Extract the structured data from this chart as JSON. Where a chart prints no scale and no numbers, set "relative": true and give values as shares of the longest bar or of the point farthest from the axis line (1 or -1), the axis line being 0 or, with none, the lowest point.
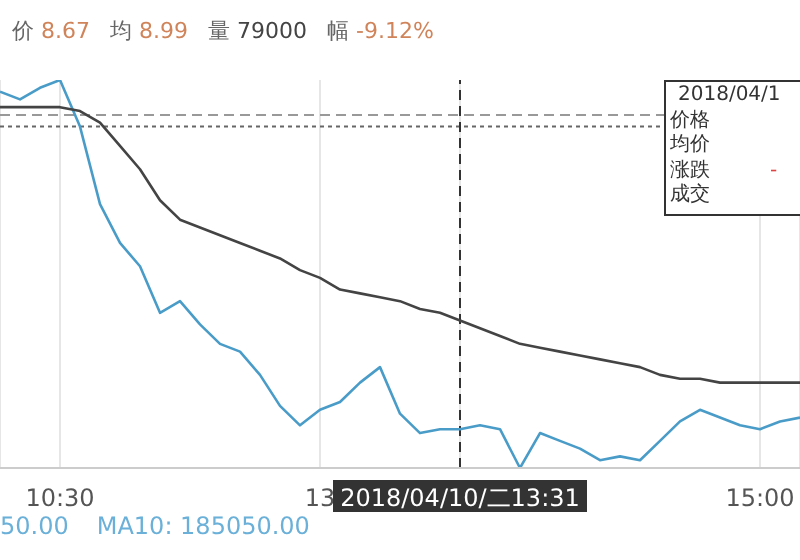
{
  "chart_data": {
    "type": "line",
    "relative": true,
    "grid": "x",
    "legend": false,
    "marker": "none",
    "line_style": "solid",
    "categories": [
      null,
      null,
      null,
      "10:30",
      null,
      null,
      null,
      null,
      null,
      null,
      null,
      null,
      null,
      null,
      null,
      null,
      "13",
      null,
      null,
      null,
      null,
      null,
      null,
      "2018/04/10/二13:31",
      null,
      null,
      null,
      null,
      null,
      null,
      null,
      null,
      null,
      null,
      null,
      null,
      null,
      null,
      "15:00",
      null,
      null
    ],
    "series": [
      {
        "color": "#4a9cc8",
        "values": [
          0.97,
          0.95,
          0.98,
          1,
          0.88,
          0.68,
          0.58,
          0.52,
          0.4,
          0.43,
          0.37,
          0.32,
          0.3,
          0.24,
          0.16,
          0.11,
          0.15,
          0.17,
          0.22,
          0.26,
          0.14,
          0.09,
          0.1,
          0.1,
          0.11,
          0.1,
          0,
          0.09,
          0.07,
          0.05,
          0.02,
          0.03,
          0.02,
          0.07,
          0.12,
          0.15,
          0.13,
          0.11,
          0.1,
          0.12,
          0.13
        ]
      },
      {
        "color": "#444444",
        "values": [
          0.93,
          0.93,
          0.93,
          0.93,
          0.92,
          0.89,
          0.83,
          0.77,
          0.69,
          0.64,
          0.62,
          0.6,
          0.58,
          0.56,
          0.54,
          0.51,
          0.49,
          0.46,
          0.45,
          0.44,
          0.43,
          0.41,
          0.4,
          0.38,
          0.36,
          0.34,
          0.32,
          0.31,
          0.3,
          0.29,
          0.28,
          0.27,
          0.26,
          0.24,
          0.23,
          0.23,
          0.22,
          0.22,
          0.22,
          0.22,
          0.22
        ]
      }
    ],
    "ref_lines": [
      {
        "axis": "y",
        "value": 0.91,
        "color": "#999999",
        "line_style": "dashed"
      },
      {
        "axis": "y",
        "value": 0.88,
        "color": "#666666",
        "line_style": "dotted"
      },
      {
        "axis": "x",
        "value": "2018/04/10/二13:31",
        "color": "#333333",
        "line_style": "dashed"
      }
    ],
    "annotations": [
      "价 8.67",
      "均 8.99",
      "量 79000",
      "幅 -9.12%",
      "2018/04/1",
      "价格",
      "均价",
      "涨跌",
      "-",
      "成交",
      "50.00",
      "MA10: 185050.00"
    ]
  }
}
